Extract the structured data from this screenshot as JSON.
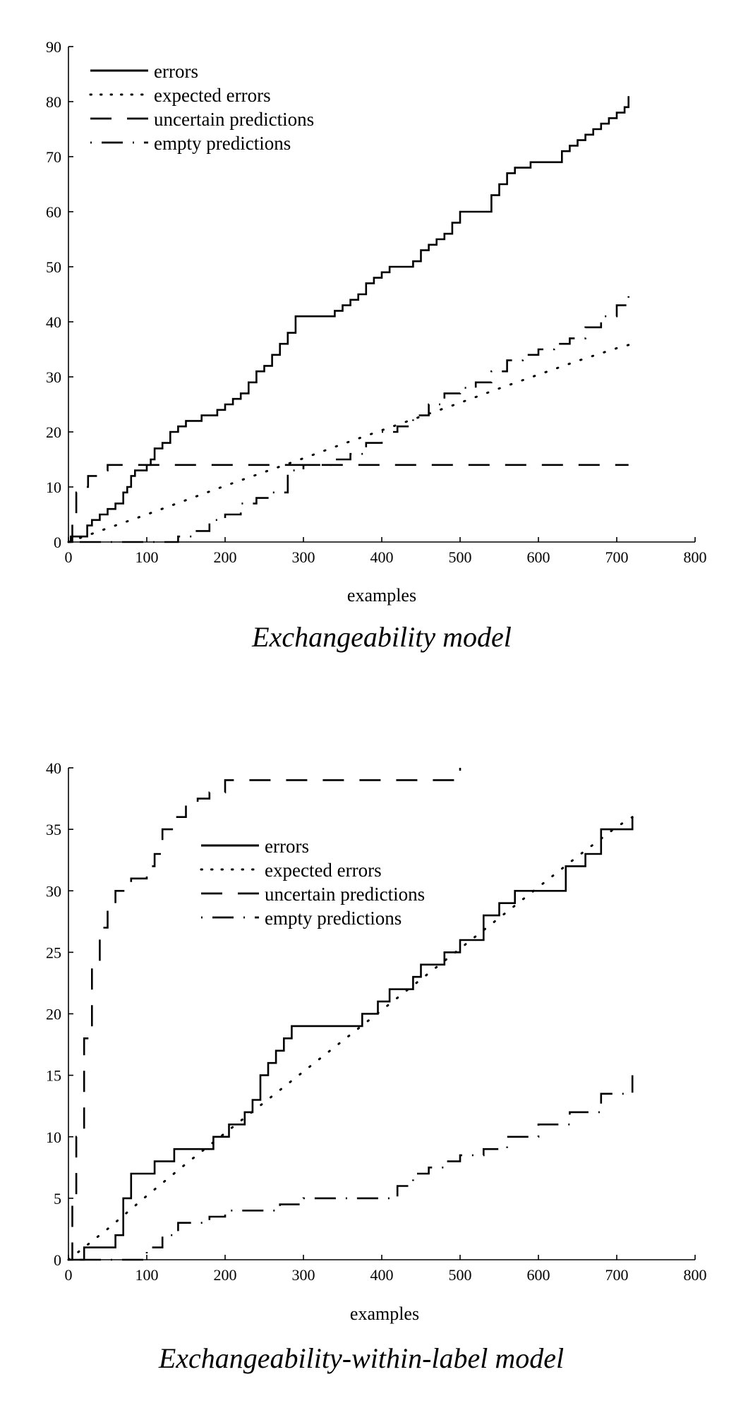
{
  "chart_data": [
    {
      "type": "line",
      "title": "Exchangeability model",
      "xlabel": "examples",
      "ylabel": "",
      "xlim": [
        0,
        800
      ],
      "ylim": [
        0,
        90
      ],
      "xticks": [
        0,
        100,
        200,
        300,
        400,
        500,
        600,
        700,
        800
      ],
      "yticks": [
        0,
        10,
        20,
        30,
        40,
        50,
        60,
        70,
        80,
        90
      ],
      "legend_position": "top-left",
      "grid": false,
      "series": [
        {
          "name": "errors",
          "style": "solid",
          "x": [
            0,
            3,
            6,
            20,
            24,
            30,
            40,
            50,
            60,
            70,
            75,
            80,
            85,
            90,
            100,
            105,
            110,
            120,
            130,
            140,
            150,
            160,
            170,
            180,
            190,
            200,
            210,
            220,
            230,
            240,
            250,
            260,
            270,
            280,
            290,
            340,
            350,
            360,
            370,
            380,
            390,
            400,
            410,
            440,
            450,
            460,
            470,
            480,
            490,
            500,
            530,
            540,
            550,
            560,
            570,
            580,
            590,
            620,
            630,
            640,
            650,
            660,
            670,
            680,
            690,
            700,
            710,
            715
          ],
          "y": [
            0,
            1,
            1,
            1,
            3,
            4,
            5,
            6,
            7,
            9,
            10,
            12,
            13,
            13,
            14,
            15,
            17,
            18,
            20,
            21,
            22,
            22,
            23,
            23,
            24,
            25,
            26,
            27,
            29,
            31,
            32,
            34,
            36,
            38,
            41,
            42,
            43,
            44,
            45,
            47,
            48,
            49,
            50,
            51,
            53,
            54,
            55,
            56,
            58,
            60,
            60,
            63,
            65,
            67,
            68,
            68,
            69,
            69,
            71,
            72,
            73,
            74,
            75,
            76,
            77,
            78,
            79,
            81
          ]
        },
        {
          "name": "expected errors",
          "style": "dotted",
          "x": [
            0,
            50,
            100,
            150,
            200,
            250,
            300,
            350,
            400,
            450,
            500,
            550,
            600,
            650,
            700,
            715
          ],
          "y": [
            0,
            2.5,
            5,
            7.6,
            10.2,
            12.7,
            15.2,
            17.8,
            20.3,
            22.8,
            25.3,
            27.9,
            30.4,
            32.9,
            35.2,
            35.8
          ]
        },
        {
          "name": "uncertain predictions",
          "style": "dashed",
          "x": [
            0,
            5,
            10,
            15,
            25,
            45,
            50,
            100,
            200,
            300,
            400,
            500,
            600,
            700,
            715
          ],
          "y": [
            0,
            5,
            9,
            10,
            12,
            13,
            14,
            14,
            14,
            14,
            14,
            14,
            14,
            14,
            14
          ]
        },
        {
          "name": "empty predictions",
          "style": "dash-dot",
          "x": [
            0,
            120,
            140,
            160,
            180,
            200,
            220,
            240,
            260,
            280,
            300,
            320,
            340,
            360,
            380,
            400,
            420,
            440,
            460,
            480,
            500,
            520,
            540,
            560,
            580,
            600,
            620,
            640,
            660,
            680,
            700,
            715
          ],
          "y": [
            0,
            0,
            1,
            2,
            4,
            5,
            7,
            8,
            9,
            13,
            14,
            14,
            15,
            16,
            18,
            20,
            21,
            23,
            25,
            27,
            28,
            29,
            31,
            33,
            34,
            35,
            36,
            37,
            39,
            41,
            43,
            45
          ]
        }
      ]
    },
    {
      "type": "line",
      "title": "Exchangeability-within-label model",
      "xlabel": "examples",
      "ylabel": "",
      "xlim": [
        0,
        800
      ],
      "ylim": [
        0,
        40
      ],
      "xticks": [
        0,
        100,
        200,
        300,
        400,
        500,
        600,
        700,
        800
      ],
      "yticks": [
        0,
        5,
        10,
        15,
        20,
        25,
        30,
        35,
        40
      ],
      "legend_position": "upper-center",
      "grid": false,
      "series": [
        {
          "name": "errors",
          "style": "solid",
          "x": [
            0,
            20,
            55,
            60,
            70,
            80,
            110,
            135,
            185,
            205,
            225,
            235,
            245,
            255,
            265,
            275,
            285,
            365,
            375,
            395,
            410,
            440,
            450,
            460,
            480,
            500,
            530,
            550,
            570,
            620,
            635,
            660,
            680,
            715,
            720
          ],
          "y": [
            0,
            1,
            1,
            2,
            5,
            7,
            8,
            9,
            10,
            11,
            12,
            13,
            15,
            16,
            17,
            18,
            19,
            19,
            20,
            21,
            22,
            23,
            24,
            24,
            25,
            26,
            28,
            29,
            30,
            30,
            32,
            33,
            35,
            35,
            36
          ]
        },
        {
          "name": "expected errors",
          "style": "dotted",
          "x": [
            0,
            50,
            100,
            150,
            200,
            250,
            300,
            350,
            400,
            450,
            500,
            550,
            600,
            650,
            700,
            720
          ],
          "y": [
            0,
            2.5,
            5.2,
            7.8,
            10.3,
            12.8,
            15.3,
            17.8,
            20.3,
            22.8,
            25.3,
            27.8,
            30.3,
            32.8,
            35.2,
            36
          ]
        },
        {
          "name": "uncertain predictions",
          "style": "dashed",
          "x": [
            0,
            5,
            10,
            20,
            30,
            40,
            50,
            60,
            80,
            100,
            110,
            120,
            135,
            150,
            165,
            180,
            200,
            250,
            300,
            350,
            400,
            450,
            495,
            500
          ],
          "y": [
            0,
            5,
            10,
            18,
            24,
            27,
            29,
            30,
            31,
            32,
            33,
            35,
            36,
            37,
            37.5,
            38,
            39,
            39,
            39,
            39,
            39,
            39,
            39,
            40
          ]
        },
        {
          "name": "empty predictions",
          "style": "dash-dot",
          "x": [
            0,
            60,
            100,
            120,
            140,
            160,
            180,
            200,
            240,
            270,
            300,
            330,
            400,
            420,
            440,
            460,
            480,
            500,
            530,
            560,
            600,
            640,
            680,
            720
          ],
          "y": [
            0,
            0,
            1,
            2,
            3,
            3,
            3.5,
            4,
            4,
            4.5,
            5,
            5,
            5,
            6,
            7,
            7.5,
            8,
            8.5,
            9,
            10,
            11,
            12,
            13.5,
            15
          ]
        }
      ]
    }
  ]
}
